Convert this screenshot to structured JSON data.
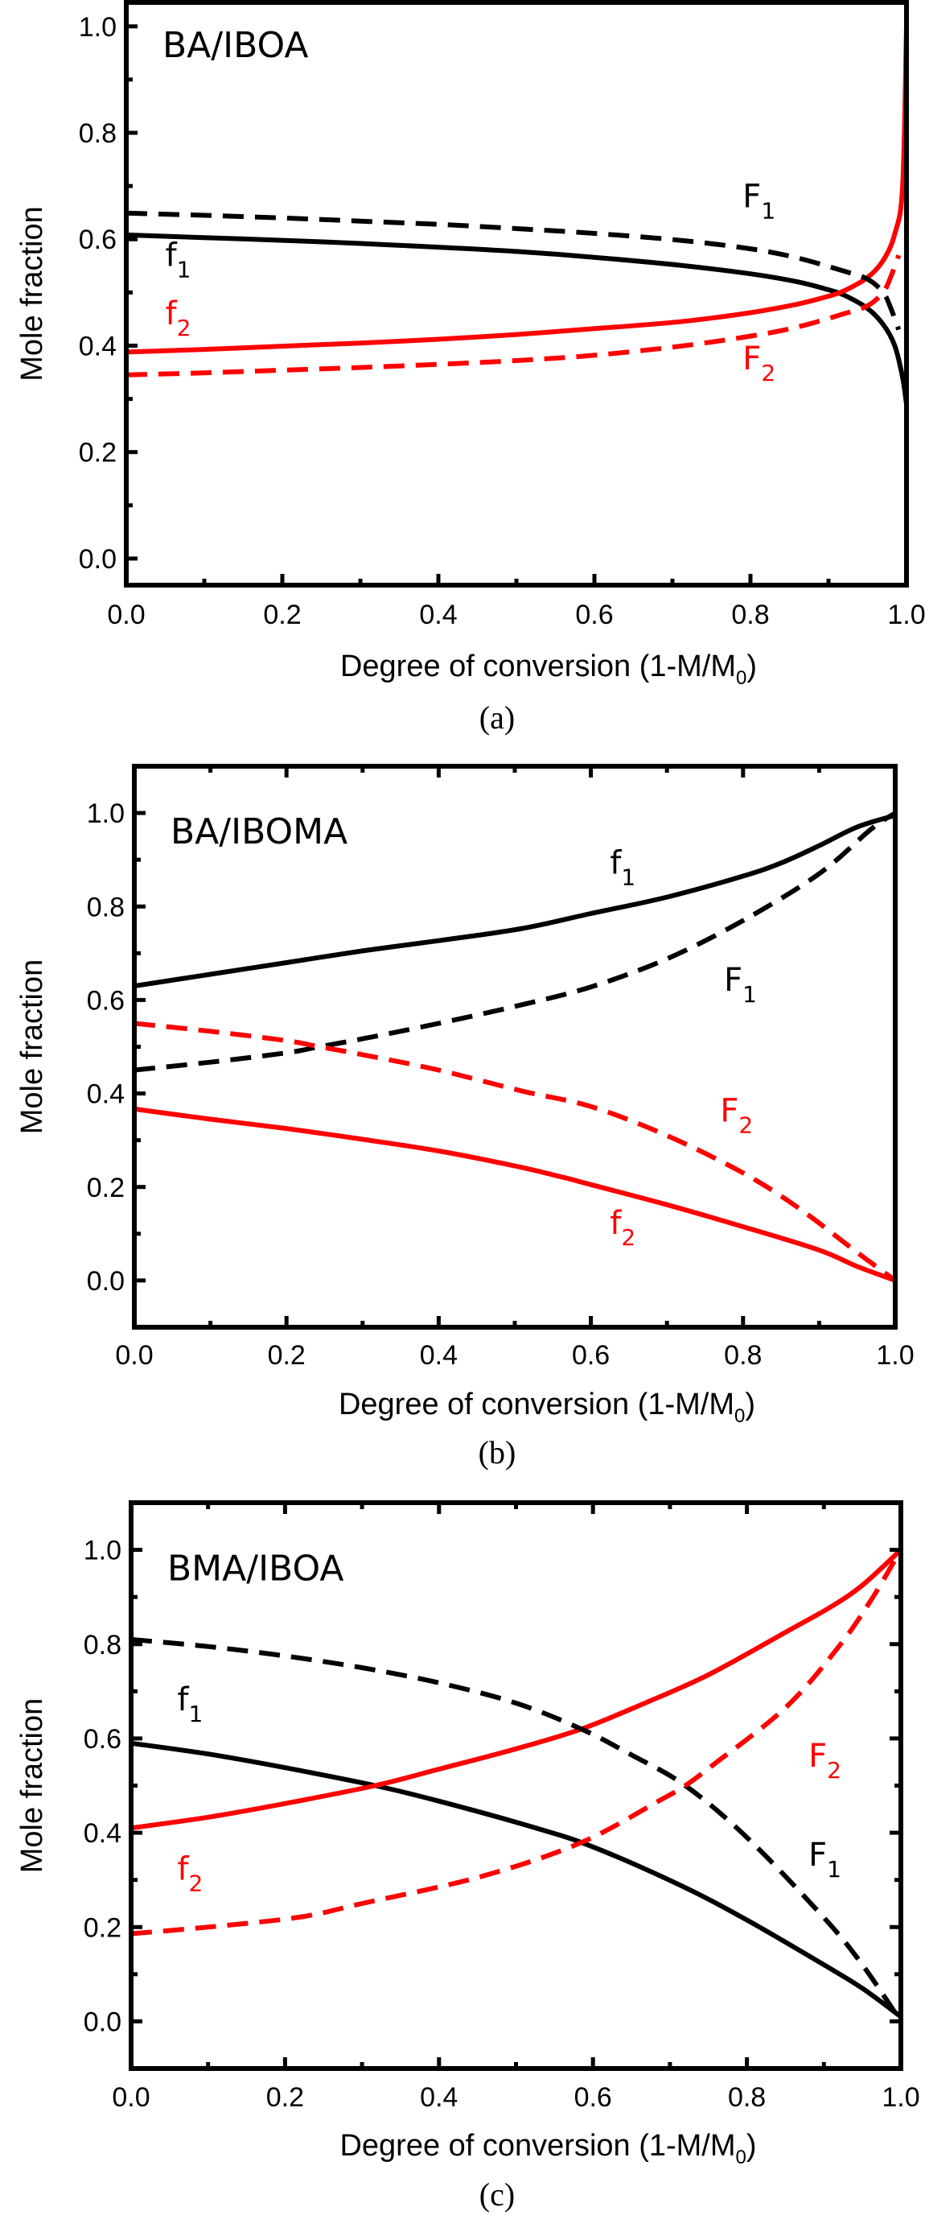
{
  "chart_data": [
    {
      "type": "line",
      "panel": "a",
      "title": "BA/IBOA",
      "caption": "(a)",
      "xlabel": "Degree of conversion (1-M/M",
      "xlabel_sub": "0",
      "xlabel_end": ")",
      "ylabel": "Mole fraction",
      "xlim": [
        0,
        1
      ],
      "ylim": [
        -0.05,
        1.045
      ],
      "xticks": [
        0.0,
        0.2,
        0.4,
        0.6,
        0.8,
        1.0
      ],
      "xtick_labels": [
        "0.0",
        "0.2",
        "0.4",
        "0.6",
        "0.8",
        "1.0"
      ],
      "yticks": [
        0.0,
        0.2,
        0.4,
        0.6,
        0.8,
        1.0
      ],
      "ytick_labels": [
        "0.0",
        "0.2",
        "0.4",
        "0.6",
        "0.8",
        "1.0"
      ],
      "x_minor_step": 0.1,
      "y_minor_step": 0.1,
      "grid": false,
      "series": [
        {
          "name": "f1",
          "label": "f",
          "sub": "1",
          "color": "#000000",
          "style": "solid",
          "x": [
            0,
            0.1,
            0.2,
            0.3,
            0.4,
            0.5,
            0.6,
            0.71,
            0.8,
            0.86,
            0.9,
            0.92,
            0.95,
            0.97,
            0.985,
            0.995,
            1.0
          ],
          "y": [
            0.608,
            0.603,
            0.598,
            0.592,
            0.585,
            0.577,
            0.566,
            0.551,
            0.535,
            0.52,
            0.505,
            0.495,
            0.47,
            0.44,
            0.4,
            0.34,
            0.29
          ]
        },
        {
          "name": "f2",
          "label": "f",
          "sub": "2",
          "color": "#ff0000",
          "style": "solid",
          "x": [
            0,
            0.1,
            0.2,
            0.3,
            0.4,
            0.5,
            0.6,
            0.71,
            0.8,
            0.86,
            0.9,
            0.92,
            0.95,
            0.97,
            0.985,
            0.995,
            1.0
          ],
          "y": [
            0.388,
            0.393,
            0.399,
            0.405,
            0.412,
            0.421,
            0.432,
            0.445,
            0.462,
            0.478,
            0.493,
            0.503,
            0.528,
            0.56,
            0.61,
            0.7,
            1.0
          ]
        },
        {
          "name": "F1",
          "label": "F",
          "sub": "1",
          "color": "#000000",
          "style": "dashed",
          "x": [
            0,
            0.1,
            0.2,
            0.3,
            0.4,
            0.5,
            0.6,
            0.71,
            0.8,
            0.86,
            0.92,
            0.95,
            0.97,
            0.98,
            0.99
          ],
          "y": [
            0.649,
            0.645,
            0.64,
            0.634,
            0.628,
            0.62,
            0.611,
            0.598,
            0.582,
            0.565,
            0.54,
            0.525,
            0.5,
            0.47,
            0.43
          ]
        },
        {
          "name": "F2",
          "label": "F",
          "sub": "2",
          "color": "#ff0000",
          "style": "dashed",
          "x": [
            0,
            0.1,
            0.2,
            0.3,
            0.4,
            0.5,
            0.6,
            0.71,
            0.8,
            0.86,
            0.92,
            0.95,
            0.97,
            0.98,
            0.99
          ],
          "y": [
            0.345,
            0.349,
            0.354,
            0.359,
            0.365,
            0.372,
            0.382,
            0.399,
            0.418,
            0.435,
            0.46,
            0.475,
            0.5,
            0.53,
            0.57
          ]
        }
      ],
      "annotations": [
        {
          "text": "F",
          "sub": "1",
          "x": 0.79,
          "y": 0.66,
          "color": "#000000"
        },
        {
          "text": "f",
          "sub": "1",
          "x": 0.05,
          "y": 0.55,
          "color": "#000000"
        },
        {
          "text": "f",
          "sub": "2",
          "x": 0.05,
          "y": 0.44,
          "color": "#ff0000"
        },
        {
          "text": "F",
          "sub": "2",
          "x": 0.79,
          "y": 0.355,
          "color": "#ff0000"
        }
      ]
    },
    {
      "type": "line",
      "panel": "b",
      "title": "BA/IBOMA",
      "caption": "(b)",
      "xlabel": "Degree of conversion (1-M/M",
      "xlabel_sub": "0",
      "xlabel_end": ")",
      "ylabel": "Mole fraction",
      "xlim": [
        0,
        1
      ],
      "ylim": [
        -0.1,
        1.1
      ],
      "xticks": [
        0.0,
        0.2,
        0.4,
        0.6,
        0.8,
        1.0
      ],
      "xtick_labels": [
        "0.0",
        "0.2",
        "0.4",
        "0.6",
        "0.8",
        "1.0"
      ],
      "yticks": [
        0.0,
        0.2,
        0.4,
        0.6,
        0.8,
        1.0
      ],
      "ytick_labels": [
        "0.0",
        "0.2",
        "0.4",
        "0.6",
        "0.8",
        "1.0"
      ],
      "x_minor_step": 0.1,
      "y_minor_step": 0.1,
      "grid": false,
      "series": [
        {
          "name": "f1",
          "label": "f",
          "sub": "1",
          "color": "#000000",
          "style": "solid",
          "x": [
            0,
            0.1,
            0.2,
            0.3,
            0.4,
            0.51,
            0.6,
            0.7,
            0.8,
            0.85,
            0.9,
            0.95,
            1.0
          ],
          "y": [
            0.63,
            0.655,
            0.68,
            0.705,
            0.727,
            0.753,
            0.785,
            0.82,
            0.865,
            0.893,
            0.93,
            0.97,
            0.995
          ]
        },
        {
          "name": "f2",
          "label": "f",
          "sub": "2",
          "color": "#ff0000",
          "style": "solid",
          "x": [
            0,
            0.1,
            0.2,
            0.3,
            0.4,
            0.5,
            0.565,
            0.6,
            0.7,
            0.8,
            0.9,
            0.95,
            1.0
          ],
          "y": [
            0.367,
            0.345,
            0.325,
            0.302,
            0.277,
            0.245,
            0.22,
            0.205,
            0.162,
            0.115,
            0.065,
            0.03,
            0.0
          ]
        },
        {
          "name": "F1",
          "label": "F",
          "sub": "1",
          "color": "#000000",
          "style": "dashed",
          "x": [
            0,
            0.1,
            0.2,
            0.243,
            0.3,
            0.4,
            0.51,
            0.6,
            0.7,
            0.8,
            0.9,
            0.968,
            1.0
          ],
          "y": [
            0.45,
            0.467,
            0.487,
            0.5,
            0.517,
            0.55,
            0.59,
            0.628,
            0.688,
            0.77,
            0.87,
            0.965,
            1.0
          ]
        },
        {
          "name": "F2",
          "label": "F",
          "sub": "2",
          "color": "#ff0000",
          "style": "dashed",
          "x": [
            0,
            0.1,
            0.2,
            0.243,
            0.3,
            0.4,
            0.51,
            0.6,
            0.7,
            0.8,
            0.873,
            0.95,
            1.0
          ],
          "y": [
            0.55,
            0.533,
            0.513,
            0.5,
            0.483,
            0.45,
            0.405,
            0.372,
            0.31,
            0.23,
            0.155,
            0.06,
            0.0
          ]
        }
      ],
      "annotations": [
        {
          "text": "f",
          "sub": "1",
          "x": 0.625,
          "y": 0.87,
          "color": "#000000"
        },
        {
          "text": "F",
          "sub": "1",
          "x": 0.775,
          "y": 0.62,
          "color": "#000000"
        },
        {
          "text": "F",
          "sub": "2",
          "x": 0.77,
          "y": 0.34,
          "color": "#ff0000"
        },
        {
          "text": "f",
          "sub": "2",
          "x": 0.625,
          "y": 0.1,
          "color": "#ff0000"
        }
      ]
    },
    {
      "type": "line",
      "panel": "c",
      "title": "BMA/IBOA",
      "caption": "(c)",
      "xlabel": "Degree of conversion (1-M/M",
      "xlabel_sub": "0",
      "xlabel_end": ")",
      "ylabel": "Mole fraction",
      "xlim": [
        0,
        1
      ],
      "ylim": [
        -0.1,
        1.1
      ],
      "xticks": [
        0.0,
        0.2,
        0.4,
        0.6,
        0.8,
        1.0
      ],
      "xtick_labels": [
        "0.0",
        "0.2",
        "0.4",
        "0.6",
        "0.8",
        "1.0"
      ],
      "yticks": [
        0.0,
        0.2,
        0.4,
        0.6,
        0.8,
        1.0
      ],
      "ytick_labels": [
        "0.0",
        "0.2",
        "0.4",
        "0.6",
        "0.8",
        "1.0"
      ],
      "x_minor_step": 0.1,
      "y_minor_step": 0.1,
      "grid": false,
      "series": [
        {
          "name": "f1",
          "label": "f",
          "sub": "1",
          "color": "#000000",
          "style": "solid",
          "x": [
            0,
            0.1,
            0.2,
            0.317,
            0.4,
            0.522,
            0.6,
            0.713,
            0.8,
            0.9,
            0.95,
            1.0
          ],
          "y": [
            0.59,
            0.567,
            0.538,
            0.5,
            0.467,
            0.412,
            0.37,
            0.289,
            0.215,
            0.12,
            0.07,
            0.01
          ]
        },
        {
          "name": "f2",
          "label": "f",
          "sub": "2",
          "color": "#ff0000",
          "style": "solid",
          "x": [
            0,
            0.1,
            0.2,
            0.317,
            0.4,
            0.5,
            0.585,
            0.666,
            0.75,
            0.85,
            0.909,
            0.95,
            1.0
          ],
          "y": [
            0.41,
            0.433,
            0.462,
            0.5,
            0.535,
            0.578,
            0.62,
            0.674,
            0.735,
            0.825,
            0.879,
            0.925,
            1.0
          ]
        },
        {
          "name": "F1",
          "label": "F",
          "sub": "1",
          "color": "#000000",
          "style": "dashed",
          "x": [
            0,
            0.1,
            0.2,
            0.3,
            0.4,
            0.5,
            0.585,
            0.65,
            0.72,
            0.8,
            0.9,
            0.95,
            1.0
          ],
          "y": [
            0.81,
            0.795,
            0.775,
            0.75,
            0.718,
            0.675,
            0.62,
            0.565,
            0.5,
            0.39,
            0.22,
            0.12,
            0.0
          ]
        },
        {
          "name": "F2",
          "label": "F",
          "sub": "2",
          "color": "#ff0000",
          "style": "dashed",
          "x": [
            0,
            0.1,
            0.219,
            0.3,
            0.452,
            0.583,
            0.686,
            0.72,
            0.757,
            0.85,
            0.917,
            0.96,
            1.0
          ],
          "y": [
            0.186,
            0.2,
            0.221,
            0.25,
            0.306,
            0.378,
            0.468,
            0.5,
            0.545,
            0.665,
            0.79,
            0.89,
            1.0
          ]
        }
      ],
      "annotations": [
        {
          "text": "f",
          "sub": "1",
          "x": 0.06,
          "y": 0.66,
          "color": "#000000"
        },
        {
          "text": "f",
          "sub": "2",
          "x": 0.06,
          "y": 0.3,
          "color": "#ff0000"
        },
        {
          "text": "F",
          "sub": "2",
          "x": 0.88,
          "y": 0.54,
          "color": "#ff0000"
        },
        {
          "text": "F",
          "sub": "1",
          "x": 0.88,
          "y": 0.33,
          "color": "#000000"
        }
      ]
    }
  ]
}
